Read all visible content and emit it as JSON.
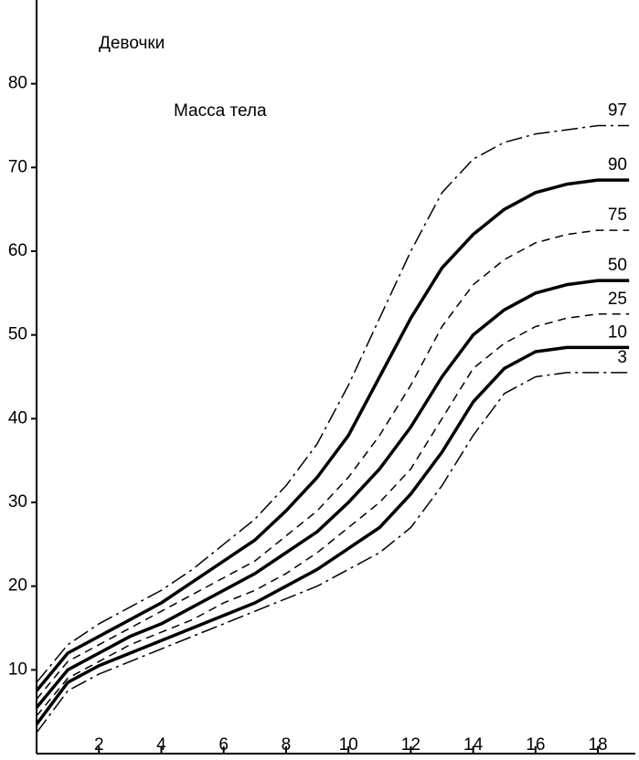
{
  "chart_data": {
    "type": "line",
    "title": "Девочки",
    "subtitle": "Масса тела",
    "x": [
      0,
      1,
      2,
      3,
      4,
      5,
      6,
      7,
      8,
      9,
      10,
      11,
      12,
      13,
      14,
      15,
      16,
      17,
      18,
      19
    ],
    "series": [
      {
        "name": "97",
        "color": "#000",
        "style": "dashdot",
        "values": [
          8.5,
          13,
          15.5,
          17.5,
          19.5,
          22,
          25,
          28,
          32,
          37,
          44,
          52,
          60,
          67,
          71,
          73,
          74,
          74.5,
          75,
          75
        ]
      },
      {
        "name": "90",
        "color": "#000",
        "style": "solid",
        "values": [
          7.5,
          12,
          14,
          16,
          18,
          20.5,
          23,
          25.5,
          29,
          33,
          38,
          45,
          52,
          58,
          62,
          65,
          67,
          68,
          68.5,
          68.5
        ]
      },
      {
        "name": "75",
        "color": "#000",
        "style": "dashed",
        "values": [
          6.5,
          11,
          13,
          15,
          17,
          19,
          21,
          23,
          26,
          29,
          33,
          38,
          44,
          51,
          56,
          59,
          61,
          62,
          62.5,
          62.5
        ]
      },
      {
        "name": "50",
        "color": "#000",
        "style": "solid",
        "values": [
          5.5,
          10,
          12,
          14,
          15.5,
          17.5,
          19.5,
          21.5,
          24,
          26.5,
          30,
          34,
          39,
          45,
          50,
          53,
          55,
          56,
          56.5,
          56.5
        ]
      },
      {
        "name": "25",
        "color": "#000",
        "style": "dashed",
        "values": [
          4.5,
          9,
          11,
          13,
          14.5,
          16,
          18,
          19.5,
          21.5,
          24,
          27,
          30,
          34,
          40,
          46,
          49,
          51,
          52,
          52.5,
          52.5
        ]
      },
      {
        "name": "10",
        "color": "#000",
        "style": "solid",
        "values": [
          3.5,
          8.5,
          10.5,
          12,
          13.5,
          15,
          16.5,
          18,
          20,
          22,
          24.5,
          27,
          31,
          36,
          42,
          46,
          48,
          48.5,
          48.5,
          48.5
        ]
      },
      {
        "name": "3",
        "color": "#000",
        "style": "dashdot",
        "values": [
          2.5,
          7.5,
          9.5,
          11,
          12.5,
          14,
          15.5,
          17,
          18.5,
          20,
          22,
          24,
          27,
          32,
          38,
          43,
          45,
          45.5,
          45.5,
          45.5
        ]
      }
    ],
    "xlim": [
      0,
      19.2
    ],
    "ylim": [
      0,
      90
    ],
    "xticks": [
      2,
      4,
      6,
      8,
      10,
      12,
      14,
      16,
      18
    ],
    "yticks": [
      10,
      20,
      30,
      40,
      50,
      60,
      70,
      80
    ]
  }
}
